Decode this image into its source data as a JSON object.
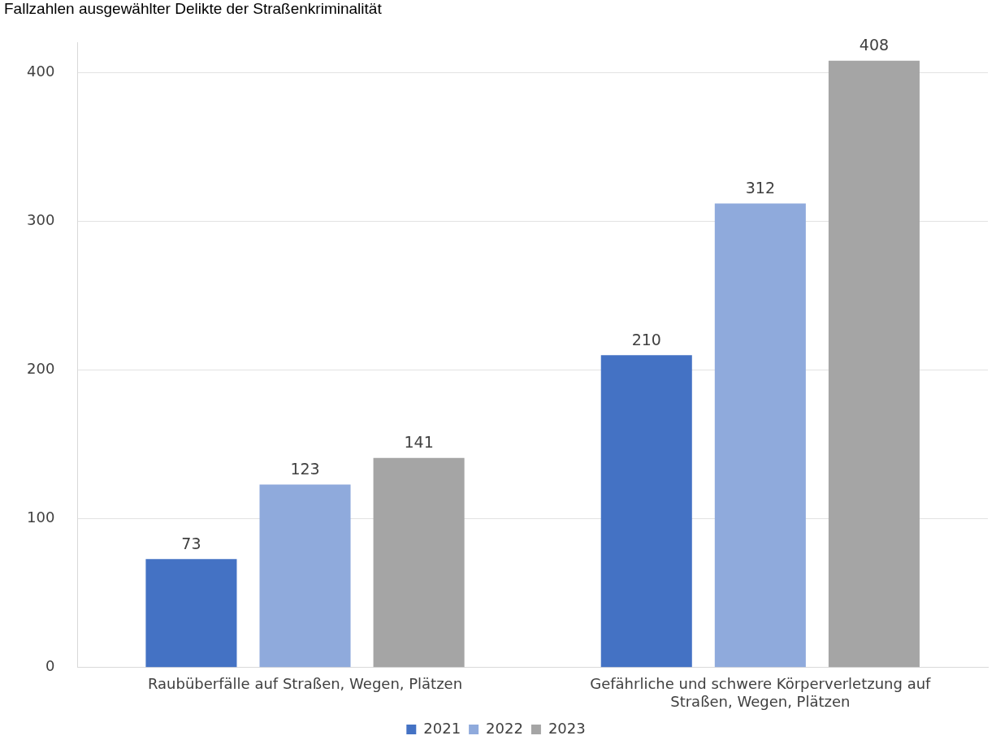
{
  "chart_data": {
    "type": "bar",
    "title": "Fallzahlen ausgewählter Delikte der Straßenkriminalität",
    "categories": [
      "Raubüberfälle auf Straßen, Wegen, Plätzen",
      "Gefährliche und schwere Körperverletzung auf Straßen, Wegen, Plätzen"
    ],
    "series": [
      {
        "name": "2021",
        "color": "#4472c4",
        "values": [
          73,
          210
        ]
      },
      {
        "name": "2022",
        "color": "#8faadc",
        "values": [
          123,
          312
        ]
      },
      {
        "name": "2023",
        "color": "#a5a5a5",
        "values": [
          141,
          408
        ]
      }
    ],
    "ylim": [
      0,
      420
    ],
    "yticks": [
      0,
      100,
      200,
      300,
      400
    ],
    "grid": "y",
    "legend": "bottom",
    "data_labels": true
  }
}
